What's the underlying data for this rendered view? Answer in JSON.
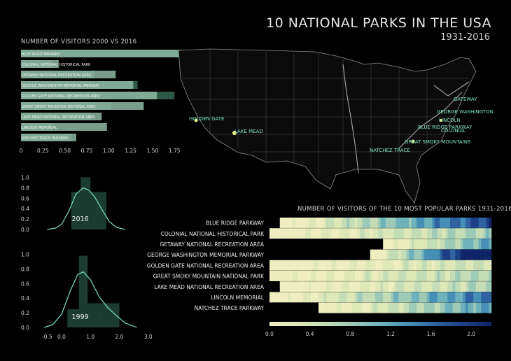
{
  "header": {
    "title": "10  NATIONAL PARKS IN THE USA",
    "subtitle": "1931-2016"
  },
  "colors": {
    "bar2016": "#8fb8a3",
    "bar2000": "#2d5a47",
    "curve": "#7fe0cc",
    "label": "#7fe3c6",
    "map_land": "#0a0a0a"
  },
  "chart_data": [
    {
      "type": "bar",
      "title": "NUMBER OF VISITORS 2000 VS 2016",
      "categories": [
        "BLUE RIDGE PARKWAY",
        "COLONIAL NATIONAL HISTORICAL PARK",
        "GETAWAY NATIONAL RECREATION AREA",
        "GEORGE WASHINGTON MEMORIAL PARKWAY",
        "GOLDEN GATE NATIONAL RECREATION AREA",
        "GREAT SMOKY MOUNTAIN NATIONAL PARK",
        "LAKE MEAD NATIONAL RECREATION AREA",
        "LINCOLN MEMORIAL",
        "NATCHEZ TRACE PARKWAY"
      ],
      "series": [
        {
          "values": [
            1.83,
            0.43,
            1.08,
            1.28,
            1.55,
            1.4,
            0.92,
            0.98,
            0.63
          ]
        },
        {
          "values": [
            1.87,
            0.35,
            0.83,
            1.33,
            1.75,
            1.03,
            0.8,
            0.36,
            0.57
          ]
        }
      ],
      "xticks": [
        "0",
        "0.25",
        "0.50",
        "0.75",
        "1.00",
        "1.25",
        "1.50",
        "1.75"
      ],
      "xlim": [
        0,
        1.9
      ]
    },
    {
      "type": "area",
      "label": "2016",
      "yticks": [
        "1.0",
        "0.8",
        "0.6",
        "0.4",
        "0.2",
        "0.0"
      ],
      "histogram": [
        {
          "x0": 0.33,
          "x1": 0.66,
          "y": 0.72
        },
        {
          "x0": 0.66,
          "x1": 1.0,
          "y": 1.0
        },
        {
          "x0": 1.0,
          "x1": 1.55,
          "y": 0.72
        }
      ],
      "curve": [
        [
          -0.5,
          0.0
        ],
        [
          -0.2,
          0.03
        ],
        [
          0.0,
          0.1
        ],
        [
          0.25,
          0.35
        ],
        [
          0.5,
          0.68
        ],
        [
          0.75,
          0.8
        ],
        [
          0.95,
          0.75
        ],
        [
          1.15,
          0.62
        ],
        [
          1.4,
          0.38
        ],
        [
          1.65,
          0.15
        ],
        [
          1.9,
          0.04
        ],
        [
          2.2,
          0.0
        ]
      ],
      "xlim": [
        -0.8,
        3.2
      ],
      "ylim": [
        0,
        1.1
      ]
    },
    {
      "type": "area",
      "label": "1999",
      "yticks": [
        "1.0",
        "0.8",
        "0.6",
        "0.4",
        "0.2",
        "0.0"
      ],
      "xticks": [
        "-0.5",
        "0.0",
        "1.0",
        "2.0",
        "3.0"
      ],
      "histogram": [
        {
          "x0": 0.2,
          "x1": 0.6,
          "y": 0.25
        },
        {
          "x0": 0.6,
          "x1": 0.9,
          "y": 0.98
        },
        {
          "x0": 0.9,
          "x1": 1.45,
          "y": 0.33
        },
        {
          "x0": 1.45,
          "x1": 2.0,
          "y": 0.33
        }
      ],
      "curve": [
        [
          -0.6,
          0.0
        ],
        [
          -0.3,
          0.04
        ],
        [
          0.0,
          0.18
        ],
        [
          0.3,
          0.5
        ],
        [
          0.55,
          0.72
        ],
        [
          0.75,
          0.76
        ],
        [
          1.0,
          0.65
        ],
        [
          1.3,
          0.42
        ],
        [
          1.6,
          0.27
        ],
        [
          1.9,
          0.16
        ],
        [
          2.2,
          0.06
        ],
        [
          2.6,
          0.0
        ]
      ],
      "xlim": [
        -0.8,
        3.2
      ],
      "ylim": [
        0,
        1.1
      ]
    },
    {
      "type": "heatmap",
      "title": "NUMBER OF VISITORS OF THE 10 MOST POPULAR PARKS  1931-2016",
      "rows": [
        "BLUE RIDGE PARKWAY",
        "COLONIAL NATIONAL HISTORICAL PARK",
        "GETAWAY NATIONAL RECREATION AREA",
        "GEORGE WASHINGTON MEMORIAL PARKWAY",
        "GOLDEN GATE NATIONAL RECREATION AREA",
        "GREAT SMOKY MOUNTAIN NATIONAL PARK",
        "LAKE MEAD NATIONAL RECREATION AREA",
        "LINCOLN MEMORIAL",
        "NATCHEZ TRACE PARKWAY"
      ],
      "x": [
        1931,
        2016
      ],
      "row_start_years": [
        1935,
        1931,
        1975,
        1970,
        1931,
        1931,
        1935,
        1931,
        1950
      ],
      "colorbar_ticks": [
        "0.0",
        "0.4",
        "0.8",
        "1.2",
        "1.6",
        "2.0"
      ],
      "colorbar_range": [
        0,
        2.2
      ]
    }
  ],
  "map": {
    "labels": [
      "GATEWAY",
      "GEORGE WASHINGTON",
      "LINCOLN",
      "BLUE RIDGE PARKWAY",
      "COLONIAL",
      "GREAT SMOKY MOUNTAINS",
      "NATCHEZ TRACE",
      "GOLDEN GATE",
      "LAKE MEAD"
    ]
  }
}
